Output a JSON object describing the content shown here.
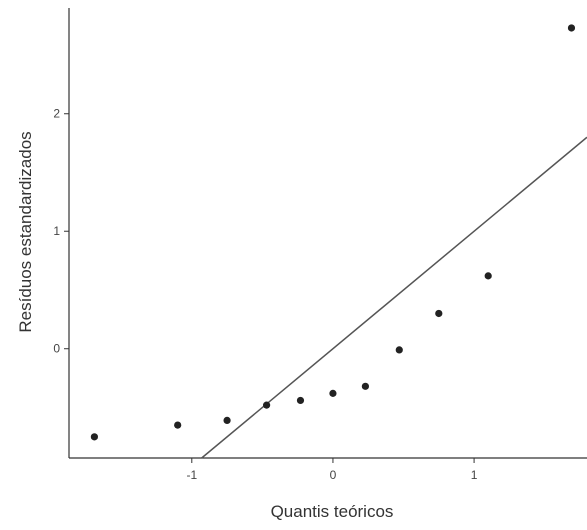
{
  "chart_data": {
    "type": "scatter",
    "title": "",
    "xlabel": "Quantis teóricos",
    "ylabel": "Resíduos estandardizados",
    "xlim": [
      -1.87,
      1.8
    ],
    "ylim": [
      -0.93,
      2.9
    ],
    "x_ticks": [
      {
        "value": -1,
        "label": "-1"
      },
      {
        "value": 0,
        "label": "0"
      },
      {
        "value": 1,
        "label": "1"
      }
    ],
    "y_ticks": [
      {
        "value": 0,
        "label": "0"
      },
      {
        "value": 1,
        "label": "1"
      },
      {
        "value": 2,
        "label": "2"
      }
    ],
    "points": [
      {
        "x": -1.69,
        "y": -0.75
      },
      {
        "x": -1.1,
        "y": -0.65
      },
      {
        "x": -0.75,
        "y": -0.61
      },
      {
        "x": -0.47,
        "y": -0.48
      },
      {
        "x": -0.23,
        "y": -0.44
      },
      {
        "x": 0.0,
        "y": -0.38
      },
      {
        "x": 0.23,
        "y": -0.32
      },
      {
        "x": 0.47,
        "y": -0.01
      },
      {
        "x": 0.75,
        "y": 0.3
      },
      {
        "x": 1.1,
        "y": 0.62
      },
      {
        "x": 1.69,
        "y": 2.73
      }
    ],
    "reference_line": {
      "intercept": 0.0,
      "slope": 1.0
    },
    "grid": false,
    "legend": "none",
    "colors": {
      "points": "#222222",
      "line": "#555555",
      "axis": "#333333",
      "text": "#444444"
    }
  }
}
